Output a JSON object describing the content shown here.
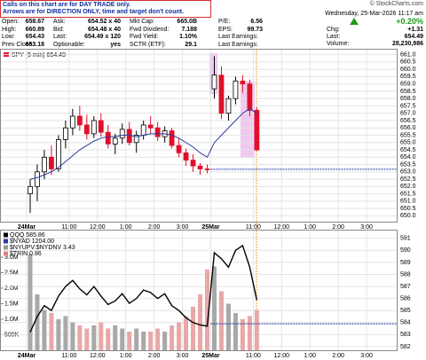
{
  "header": {
    "notes": [
      "Calls on this chart are for DAY TRADE only.",
      "Arrows are for DIRECTION ONLY, time and target don't count."
    ],
    "quote": {
      "rows": [
        [
          [
            "Open:",
            "658.67"
          ],
          [
            "Ask:",
            "654.52 x 40"
          ],
          [
            "Mkt Cap:",
            "665.0B"
          ],
          [
            "P/E:",
            "6.56"
          ]
        ],
        [
          [
            "High:",
            "660.89"
          ],
          [
            "Bid:",
            "654.48 x 40"
          ],
          [
            "Fwd Dividend:",
            "7.188"
          ],
          [
            "EPS:",
            "99.73"
          ]
        ],
        [
          [
            "Low:",
            "654.43"
          ],
          [
            "Last:",
            "654.49 x 120"
          ],
          [
            "Fwd Yield:",
            "1.10%"
          ],
          [
            "Last Earnings:"
          ]
        ],
        [
          [
            "Prev Close:",
            "653.18"
          ],
          [
            "Optionable:",
            "yes"
          ],
          [
            "SCTR (ETF):",
            "29.1"
          ],
          [
            "Last Earnings:"
          ]
        ]
      ]
    },
    "source": "© StockCharts.com",
    "timestamp": "Wednesday, 25-Mar-2026 11:17 am",
    "change_pct": "+0.20%",
    "chg_label": "Chg:",
    "chg": "+1.31",
    "last_label": "Last:",
    "last": "654.49",
    "volume_label": "Volume:",
    "volume": "28,230,986"
  },
  "chart_data": [
    {
      "type": "candlestick",
      "title": "SPY (5 min) 654.49",
      "open": [
        651.5,
        652.0,
        653.0,
        654.0,
        653.2,
        655.2,
        656.0,
        656.8,
        656.2,
        655.6,
        656.5,
        655.7,
        654.9,
        655.3,
        655.9,
        655.0,
        655.5,
        656.2,
        656.0,
        655.4,
        655.8,
        654.8,
        654.3,
        653.8,
        653.4,
        653.2,
        658.67,
        659.6,
        657.0,
        658.0,
        659.2,
        659.0,
        657.2
      ],
      "high": [
        652.5,
        653.5,
        654.5,
        654.8,
        655.5,
        656.5,
        657.3,
        657.5,
        656.9,
        656.8,
        657.0,
        656.2,
        655.6,
        656.3,
        656.4,
        655.8,
        656.5,
        656.8,
        656.4,
        656.1,
        656.0,
        655.3,
        654.6,
        654.2,
        653.6,
        653.5,
        660.89,
        660.2,
        658.2,
        659.5,
        659.6,
        659.3,
        657.4
      ],
      "low": [
        650.2,
        651.0,
        652.5,
        652.8,
        653.0,
        654.6,
        655.5,
        655.8,
        655.2,
        655.3,
        655.4,
        654.6,
        654.2,
        654.9,
        654.8,
        654.3,
        655.2,
        655.6,
        655.1,
        655.0,
        654.6,
        654.0,
        653.4,
        653.0,
        652.8,
        652.9,
        658.0,
        656.6,
        656.5,
        657.6,
        658.4,
        656.8,
        654.43
      ],
      "close": [
        652.0,
        653.0,
        654.0,
        653.2,
        655.2,
        656.0,
        656.8,
        656.2,
        655.6,
        656.5,
        655.7,
        654.9,
        655.3,
        655.9,
        655.0,
        655.5,
        656.2,
        656.0,
        655.4,
        655.8,
        654.8,
        654.3,
        653.8,
        653.4,
        653.2,
        653.18,
        659.6,
        657.0,
        658.0,
        659.2,
        659.0,
        657.2,
        654.49
      ],
      "ma": [
        652.5,
        652.6,
        652.8,
        653.0,
        653.3,
        653.7,
        654.1,
        654.5,
        654.8,
        655.1,
        655.3,
        655.4,
        655.4,
        655.5,
        655.5,
        655.4,
        655.5,
        655.6,
        655.6,
        655.6,
        655.5,
        655.3,
        655.0,
        654.7,
        654.3,
        654.0,
        655.0,
        655.5,
        656.0,
        656.5,
        657.0,
        657.3,
        657.0
      ],
      "up_color": "#000000",
      "down_color": "#e0102a",
      "ma_color": "#2a3aa0",
      "reference_line": 653.18,
      "reference_color": "#2233aa",
      "xlim": [
        0,
        52
      ],
      "xticks": [
        {
          "value": 0,
          "label": "24Mar"
        },
        {
          "value": 6,
          "label": "11:00"
        },
        {
          "value": 10,
          "label": "12:00"
        },
        {
          "value": 14,
          "label": "1:00"
        },
        {
          "value": 18,
          "label": "2:00"
        },
        {
          "value": 22,
          "label": "3:00"
        },
        {
          "value": 26,
          "label": "25Mar"
        },
        {
          "value": 32,
          "label": "11:00"
        },
        {
          "value": 36,
          "label": "12:00"
        },
        {
          "value": 40,
          "label": "1:00"
        },
        {
          "value": 44,
          "label": "2:00"
        },
        {
          "value": 48,
          "label": "3:00"
        }
      ],
      "ylim": [
        649.6,
        661.4
      ],
      "yticks": [
        {
          "value": 650,
          "label": "650.0"
        },
        650.5,
        {
          "value": 651,
          "label": "651.0"
        },
        651.5,
        {
          "value": 652,
          "label": "652.0"
        },
        652.5,
        {
          "value": 653,
          "label": "653.0"
        },
        653.5,
        {
          "value": 654,
          "label": "654.0"
        },
        654.5,
        {
          "value": 655,
          "label": "655.0"
        },
        655.5,
        {
          "value": 656,
          "label": "656.0"
        },
        656.5,
        {
          "value": 657,
          "label": "657.0"
        },
        657.5,
        {
          "value": 658,
          "label": "658.0"
        },
        658.5,
        {
          "value": 659,
          "label": "659.0"
        },
        659.5,
        {
          "value": 660,
          "label": "660.0"
        },
        660.5,
        {
          "value": 661,
          "label": "661.0"
        }
      ],
      "grid": true
    },
    {
      "type": "volume_line",
      "legend": [
        {
          "label": "QQQ 585.86",
          "color": "#000000"
        },
        {
          "label": "$NYAD 1204.00",
          "color": "#2a3aa0"
        },
        {
          "label": "$NYUPV:$NYDNV 3.43",
          "color": "#999999"
        },
        {
          "label": "$TRIN 0.86",
          "color": "#e08080"
        }
      ],
      "volume": [
        3100000,
        1800000,
        1300000,
        1200000,
        1000000,
        1100000,
        900000,
        800000,
        700000,
        800000,
        900000,
        700000,
        800000,
        700000,
        600000,
        700000,
        600000,
        600000,
        700000,
        600000,
        800000,
        900000,
        1100000,
        1400000,
        1800000,
        2600000,
        2700000,
        1900000,
        1500000,
        1200000,
        1000000,
        1100000,
        1300000
      ],
      "qqq": [
        583.2,
        584.5,
        585.4,
        585.0,
        586.2,
        587.0,
        587.5,
        586.8,
        586.3,
        587.0,
        586.2,
        585.5,
        585.8,
        586.4,
        585.6,
        586.0,
        586.7,
        586.5,
        586.0,
        586.4,
        585.4,
        585.0,
        584.4,
        584.0,
        583.8,
        583.7,
        589.8,
        589.3,
        588.6,
        590.0,
        590.4,
        588.6,
        585.86
      ],
      "up_color": "#a8a8a8",
      "down_color": "#e8a8a8",
      "line_color": "#000000",
      "reference_line": 583.9,
      "reference_color": "#2233aa",
      "xlim": [
        0,
        52
      ],
      "xticks": [
        {
          "value": 0,
          "label": "24Mar"
        },
        {
          "value": 6,
          "label": "11:00"
        },
        {
          "value": 10,
          "label": "12:00"
        },
        {
          "value": 14,
          "label": "1:00"
        },
        {
          "value": 18,
          "label": "2:00"
        },
        {
          "value": 22,
          "label": "3:00"
        },
        {
          "value": 26,
          "label": "25Mar"
        },
        {
          "value": 32,
          "label": "11:00"
        },
        {
          "value": 36,
          "label": "12:00"
        },
        {
          "value": 40,
          "label": "1:00"
        },
        {
          "value": 44,
          "label": "2:00"
        },
        {
          "value": 48,
          "label": "3:00"
        }
      ],
      "ylim": [
        0,
        3800000
      ],
      "yticks": [
        {
          "value": 500000,
          "label": "500K"
        },
        {
          "value": 1000000,
          "label": "1.0M"
        },
        {
          "value": 1500000,
          "label": "1.5M"
        },
        {
          "value": 2000000,
          "label": "2.0M"
        },
        {
          "value": 2500000,
          "label": "2.5M"
        },
        {
          "value": 3000000,
          "label": "3.0M"
        }
      ],
      "y2lim": [
        581.7,
        591.5
      ],
      "y2ticks": [
        582,
        583,
        584,
        585,
        586,
        587,
        588,
        589,
        590,
        591
      ],
      "grid": true
    }
  ]
}
